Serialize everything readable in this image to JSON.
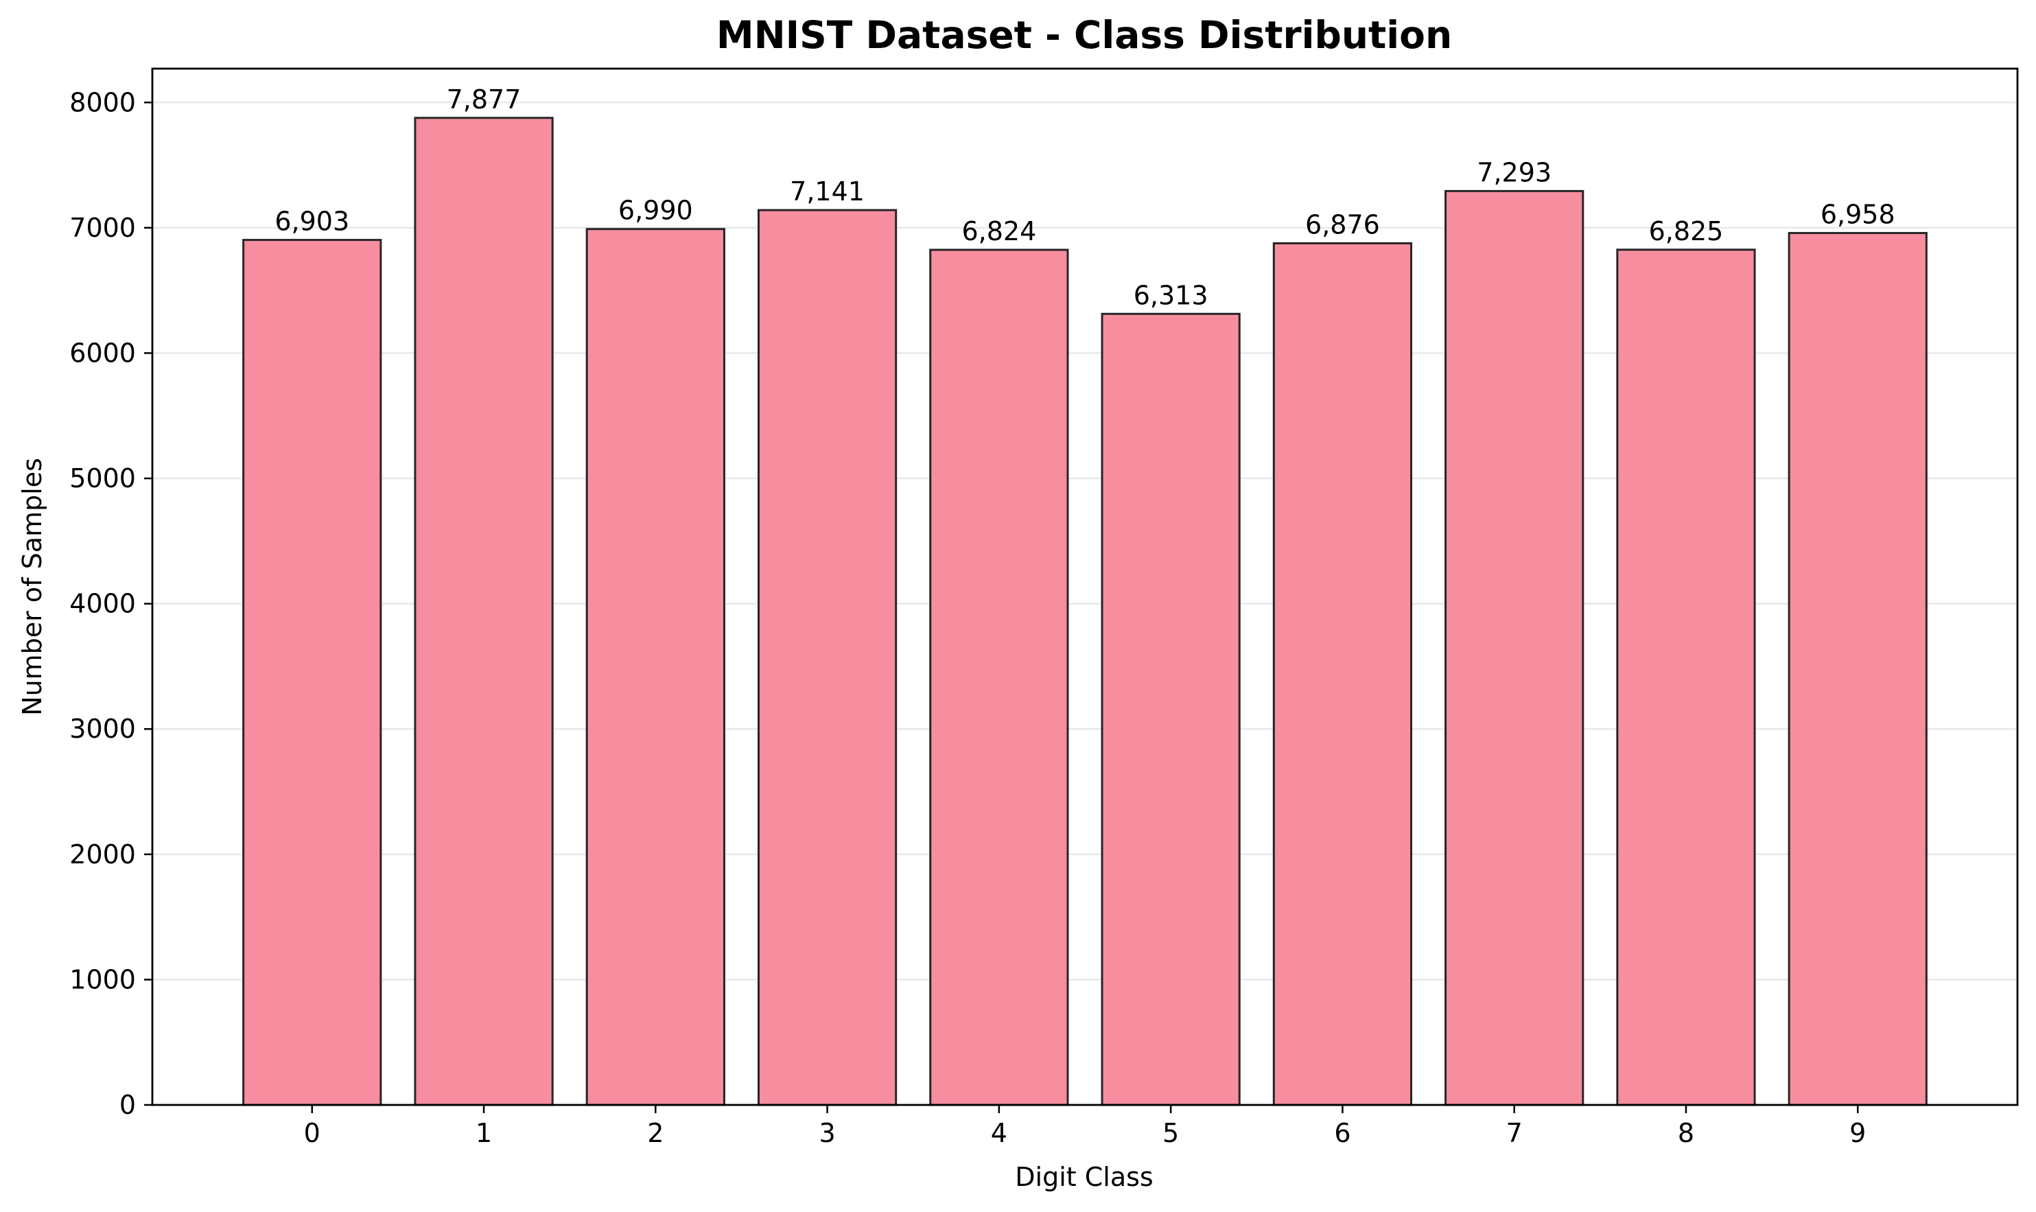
{
  "chart_data": {
    "type": "bar",
    "title": "MNIST Dataset - Class Distribution",
    "xlabel": "Digit Class",
    "ylabel": "Number of Samples",
    "categories": [
      "0",
      "1",
      "2",
      "3",
      "4",
      "5",
      "6",
      "7",
      "8",
      "9"
    ],
    "values": [
      6903,
      7877,
      6990,
      7141,
      6824,
      6313,
      6876,
      7293,
      6825,
      6958
    ],
    "value_labels": [
      "6,903",
      "7,877",
      "6,990",
      "7,141",
      "6,824",
      "6,313",
      "6,876",
      "7,293",
      "6,825",
      "6,958"
    ],
    "ylim": [
      0,
      8270
    ],
    "yticks": [
      0,
      1000,
      2000,
      3000,
      4000,
      5000,
      6000,
      7000,
      8000
    ],
    "ytick_labels": [
      "0",
      "1000",
      "2000",
      "3000",
      "4000",
      "5000",
      "6000",
      "7000",
      "8000"
    ],
    "grid": "y-axis",
    "legend": "none",
    "colors": {
      "bar_fill": "#f78ea0",
      "bar_edge": "#262626",
      "grid": "#e6e6e6",
      "axis": "#000000"
    }
  }
}
